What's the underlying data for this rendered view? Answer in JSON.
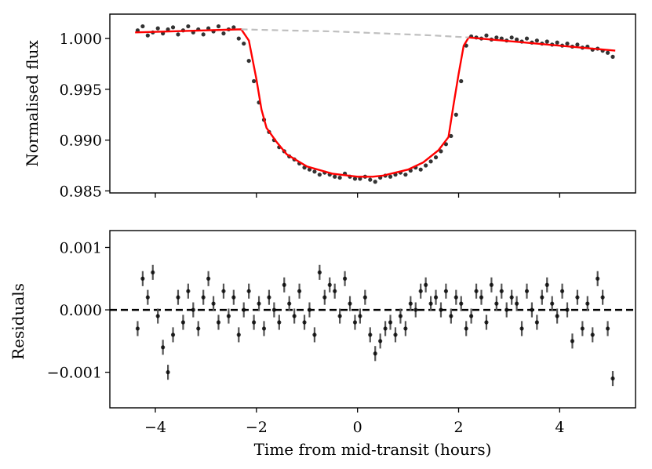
{
  "chart_data": [
    {
      "type": "scatter",
      "panel": "top",
      "title": "",
      "xlabel": "",
      "ylabel": "Normalised flux",
      "xlim": [
        -4.9,
        5.5
      ],
      "ylim": [
        0.9848,
        1.0024
      ],
      "yticks": [
        0.985,
        0.99,
        0.995,
        1.0
      ],
      "ytick_labels": [
        "0.985",
        "0.990",
        "0.995",
        "1.000"
      ],
      "xticks": [
        -4,
        -2,
        0,
        2,
        4
      ],
      "series": [
        {
          "name": "data",
          "color": "#000000",
          "style": "points",
          "x": [
            -4.35,
            -4.25,
            -4.15,
            -4.05,
            -3.95,
            -3.85,
            -3.75,
            -3.65,
            -3.55,
            -3.45,
            -3.35,
            -3.25,
            -3.15,
            -3.05,
            -2.95,
            -2.85,
            -2.75,
            -2.65,
            -2.55,
            -2.45,
            -2.35,
            -2.25,
            -2.15,
            -2.05,
            -1.95,
            -1.85,
            -1.75,
            -1.65,
            -1.55,
            -1.45,
            -1.35,
            -1.25,
            -1.15,
            -1.05,
            -0.95,
            -0.85,
            -0.75,
            -0.65,
            -0.55,
            -0.45,
            -0.35,
            -0.25,
            -0.15,
            -0.05,
            0.05,
            0.15,
            0.25,
            0.35,
            0.45,
            0.55,
            0.65,
            0.75,
            0.85,
            0.95,
            1.05,
            1.15,
            1.25,
            1.35,
            1.45,
            1.55,
            1.65,
            1.75,
            1.85,
            1.95,
            2.05,
            2.15,
            2.25,
            2.35,
            2.45,
            2.55,
            2.65,
            2.75,
            2.85,
            2.95,
            3.05,
            3.15,
            3.25,
            3.35,
            3.45,
            3.55,
            3.65,
            3.75,
            3.85,
            3.95,
            4.05,
            4.15,
            4.25,
            4.35,
            4.45,
            4.55,
            4.65,
            4.75,
            4.85,
            4.95,
            5.05
          ],
          "y": [
            1.0008,
            1.0012,
            1.0003,
            1.0006,
            1.001,
            1.0005,
            1.0009,
            1.0011,
            1.0004,
            1.0008,
            1.0012,
            1.0006,
            1.0009,
            1.0004,
            1.001,
            1.0007,
            1.0012,
            1.0005,
            1.0009,
            1.0011,
            1.0,
            0.9995,
            0.9978,
            0.9958,
            0.9937,
            0.992,
            0.9908,
            0.99,
            0.9893,
            0.9889,
            0.9884,
            0.9881,
            0.9877,
            0.9873,
            0.9871,
            0.9869,
            0.9866,
            0.9868,
            0.9866,
            0.9864,
            0.9863,
            0.9867,
            0.9864,
            0.9862,
            0.9862,
            0.9864,
            0.9861,
            0.9859,
            0.9863,
            0.9865,
            0.9864,
            0.9866,
            0.9868,
            0.9866,
            0.987,
            0.9873,
            0.9871,
            0.9875,
            0.9879,
            0.9883,
            0.9889,
            0.9896,
            0.9904,
            0.9925,
            0.9958,
            0.9993,
            1.0002,
            1.0001,
            1.0,
            1.0003,
            0.9999,
            1.0001,
            1.0,
            0.9998,
            1.0001,
            0.9999,
            0.9997,
            1.0,
            0.9996,
            0.9998,
            0.9995,
            0.9997,
            0.9994,
            0.9996,
            0.9993,
            0.9995,
            0.9992,
            0.9994,
            0.9991,
            0.9992,
            0.9989,
            0.999,
            0.9988,
            0.9986,
            0.9982
          ]
        },
        {
          "name": "transit model",
          "color": "#ff0000",
          "style": "line",
          "x": [
            -4.4,
            -2.3,
            -2.15,
            -2.0,
            -1.9,
            -1.8,
            -1.6,
            -1.4,
            -1.0,
            -0.5,
            0.0,
            0.3,
            0.5,
            1.0,
            1.3,
            1.6,
            1.8,
            1.9,
            2.0,
            2.1,
            2.2,
            5.1
          ],
          "y": [
            1.0006,
            1.0009,
            0.9998,
            0.996,
            0.993,
            0.9912,
            0.9898,
            0.9886,
            0.9874,
            0.9867,
            0.9864,
            0.9864,
            0.9865,
            0.9871,
            0.9878,
            0.989,
            0.9903,
            0.9935,
            0.9965,
            0.9993,
            1.0001,
            0.9988
          ]
        },
        {
          "name": "baseline",
          "color": "#bfbfbf",
          "style": "dashed",
          "x": [
            -2.3,
            -1.5,
            -0.5,
            0.5,
            1.5,
            2.2
          ],
          "y": [
            1.0009,
            1.0008,
            1.0007,
            1.0005,
            1.0003,
            1.0001
          ]
        }
      ]
    },
    {
      "type": "scatter",
      "panel": "bottom",
      "title": "",
      "xlabel": "Time from mid-transit (hours)",
      "ylabel": "Residuals",
      "xlim": [
        -4.9,
        5.5
      ],
      "ylim": [
        -0.00157,
        0.00127
      ],
      "yticks": [
        -0.001,
        0.0,
        0.001
      ],
      "ytick_labels": [
        "−0.001",
        "0.000",
        "0.001"
      ],
      "xticks": [
        -4,
        -2,
        0,
        2,
        4
      ],
      "xtick_labels": [
        "−4",
        "−2",
        "0",
        "2",
        "4"
      ],
      "errorbar": 0.00012,
      "zero_line": {
        "y": 0.0,
        "color": "#000000",
        "style": "dashed"
      },
      "series": [
        {
          "name": "residuals",
          "color": "#000000",
          "style": "errorbar-points",
          "x": [
            -4.35,
            -4.25,
            -4.15,
            -4.05,
            -3.95,
            -3.85,
            -3.75,
            -3.65,
            -3.55,
            -3.45,
            -3.35,
            -3.25,
            -3.15,
            -3.05,
            -2.95,
            -2.85,
            -2.75,
            -2.65,
            -2.55,
            -2.45,
            -2.35,
            -2.25,
            -2.15,
            -2.05,
            -1.95,
            -1.85,
            -1.75,
            -1.65,
            -1.55,
            -1.45,
            -1.35,
            -1.25,
            -1.15,
            -1.05,
            -0.95,
            -0.85,
            -0.75,
            -0.65,
            -0.55,
            -0.45,
            -0.35,
            -0.25,
            -0.15,
            -0.05,
            0.05,
            0.15,
            0.25,
            0.35,
            0.45,
            0.55,
            0.65,
            0.75,
            0.85,
            0.95,
            1.05,
            1.15,
            1.25,
            1.35,
            1.45,
            1.55,
            1.65,
            1.75,
            1.85,
            1.95,
            2.05,
            2.15,
            2.25,
            2.35,
            2.45,
            2.55,
            2.65,
            2.75,
            2.85,
            2.95,
            3.05,
            3.15,
            3.25,
            3.35,
            3.45,
            3.55,
            3.65,
            3.75,
            3.85,
            3.95,
            4.05,
            4.15,
            4.25,
            4.35,
            4.45,
            4.55,
            4.65,
            4.75,
            4.85,
            4.95,
            5.05
          ],
          "y": [
            -0.0003,
            0.0005,
            0.0002,
            0.0006,
            -0.0001,
            -0.0006,
            -0.001,
            -0.0004,
            0.0002,
            -0.0002,
            0.0003,
            0.0,
            -0.0003,
            0.0002,
            0.0005,
            0.0001,
            -0.0002,
            0.0003,
            -0.0001,
            0.0002,
            -0.0004,
            0.0,
            0.0003,
            -0.0002,
            0.0001,
            -0.0003,
            0.0002,
            0.0,
            -0.0002,
            0.0004,
            0.0001,
            -0.0001,
            0.0003,
            -0.0002,
            0.0,
            -0.0004,
            0.0006,
            0.0002,
            0.0004,
            0.0003,
            -0.0001,
            0.0005,
            0.0001,
            -0.0002,
            -0.0001,
            0.0002,
            -0.0004,
            -0.0007,
            -0.0005,
            -0.0003,
            -0.0002,
            -0.0004,
            -0.0001,
            -0.0003,
            0.0001,
            0.0,
            0.0003,
            0.0004,
            0.0001,
            0.0002,
            0.0,
            0.0003,
            -0.0001,
            0.0002,
            0.0001,
            -0.0003,
            -0.0001,
            0.0003,
            0.0002,
            -0.0002,
            0.0004,
            0.0001,
            0.0003,
            0.0,
            0.0002,
            0.0001,
            -0.0003,
            0.0003,
            0.0,
            -0.0002,
            0.0002,
            0.0004,
            0.0001,
            -0.0001,
            0.0003,
            0.0,
            -0.0005,
            0.0002,
            -0.0003,
            0.0001,
            -0.0004,
            0.0005,
            0.0002,
            -0.0003,
            -0.0011
          ]
        }
      ]
    }
  ]
}
